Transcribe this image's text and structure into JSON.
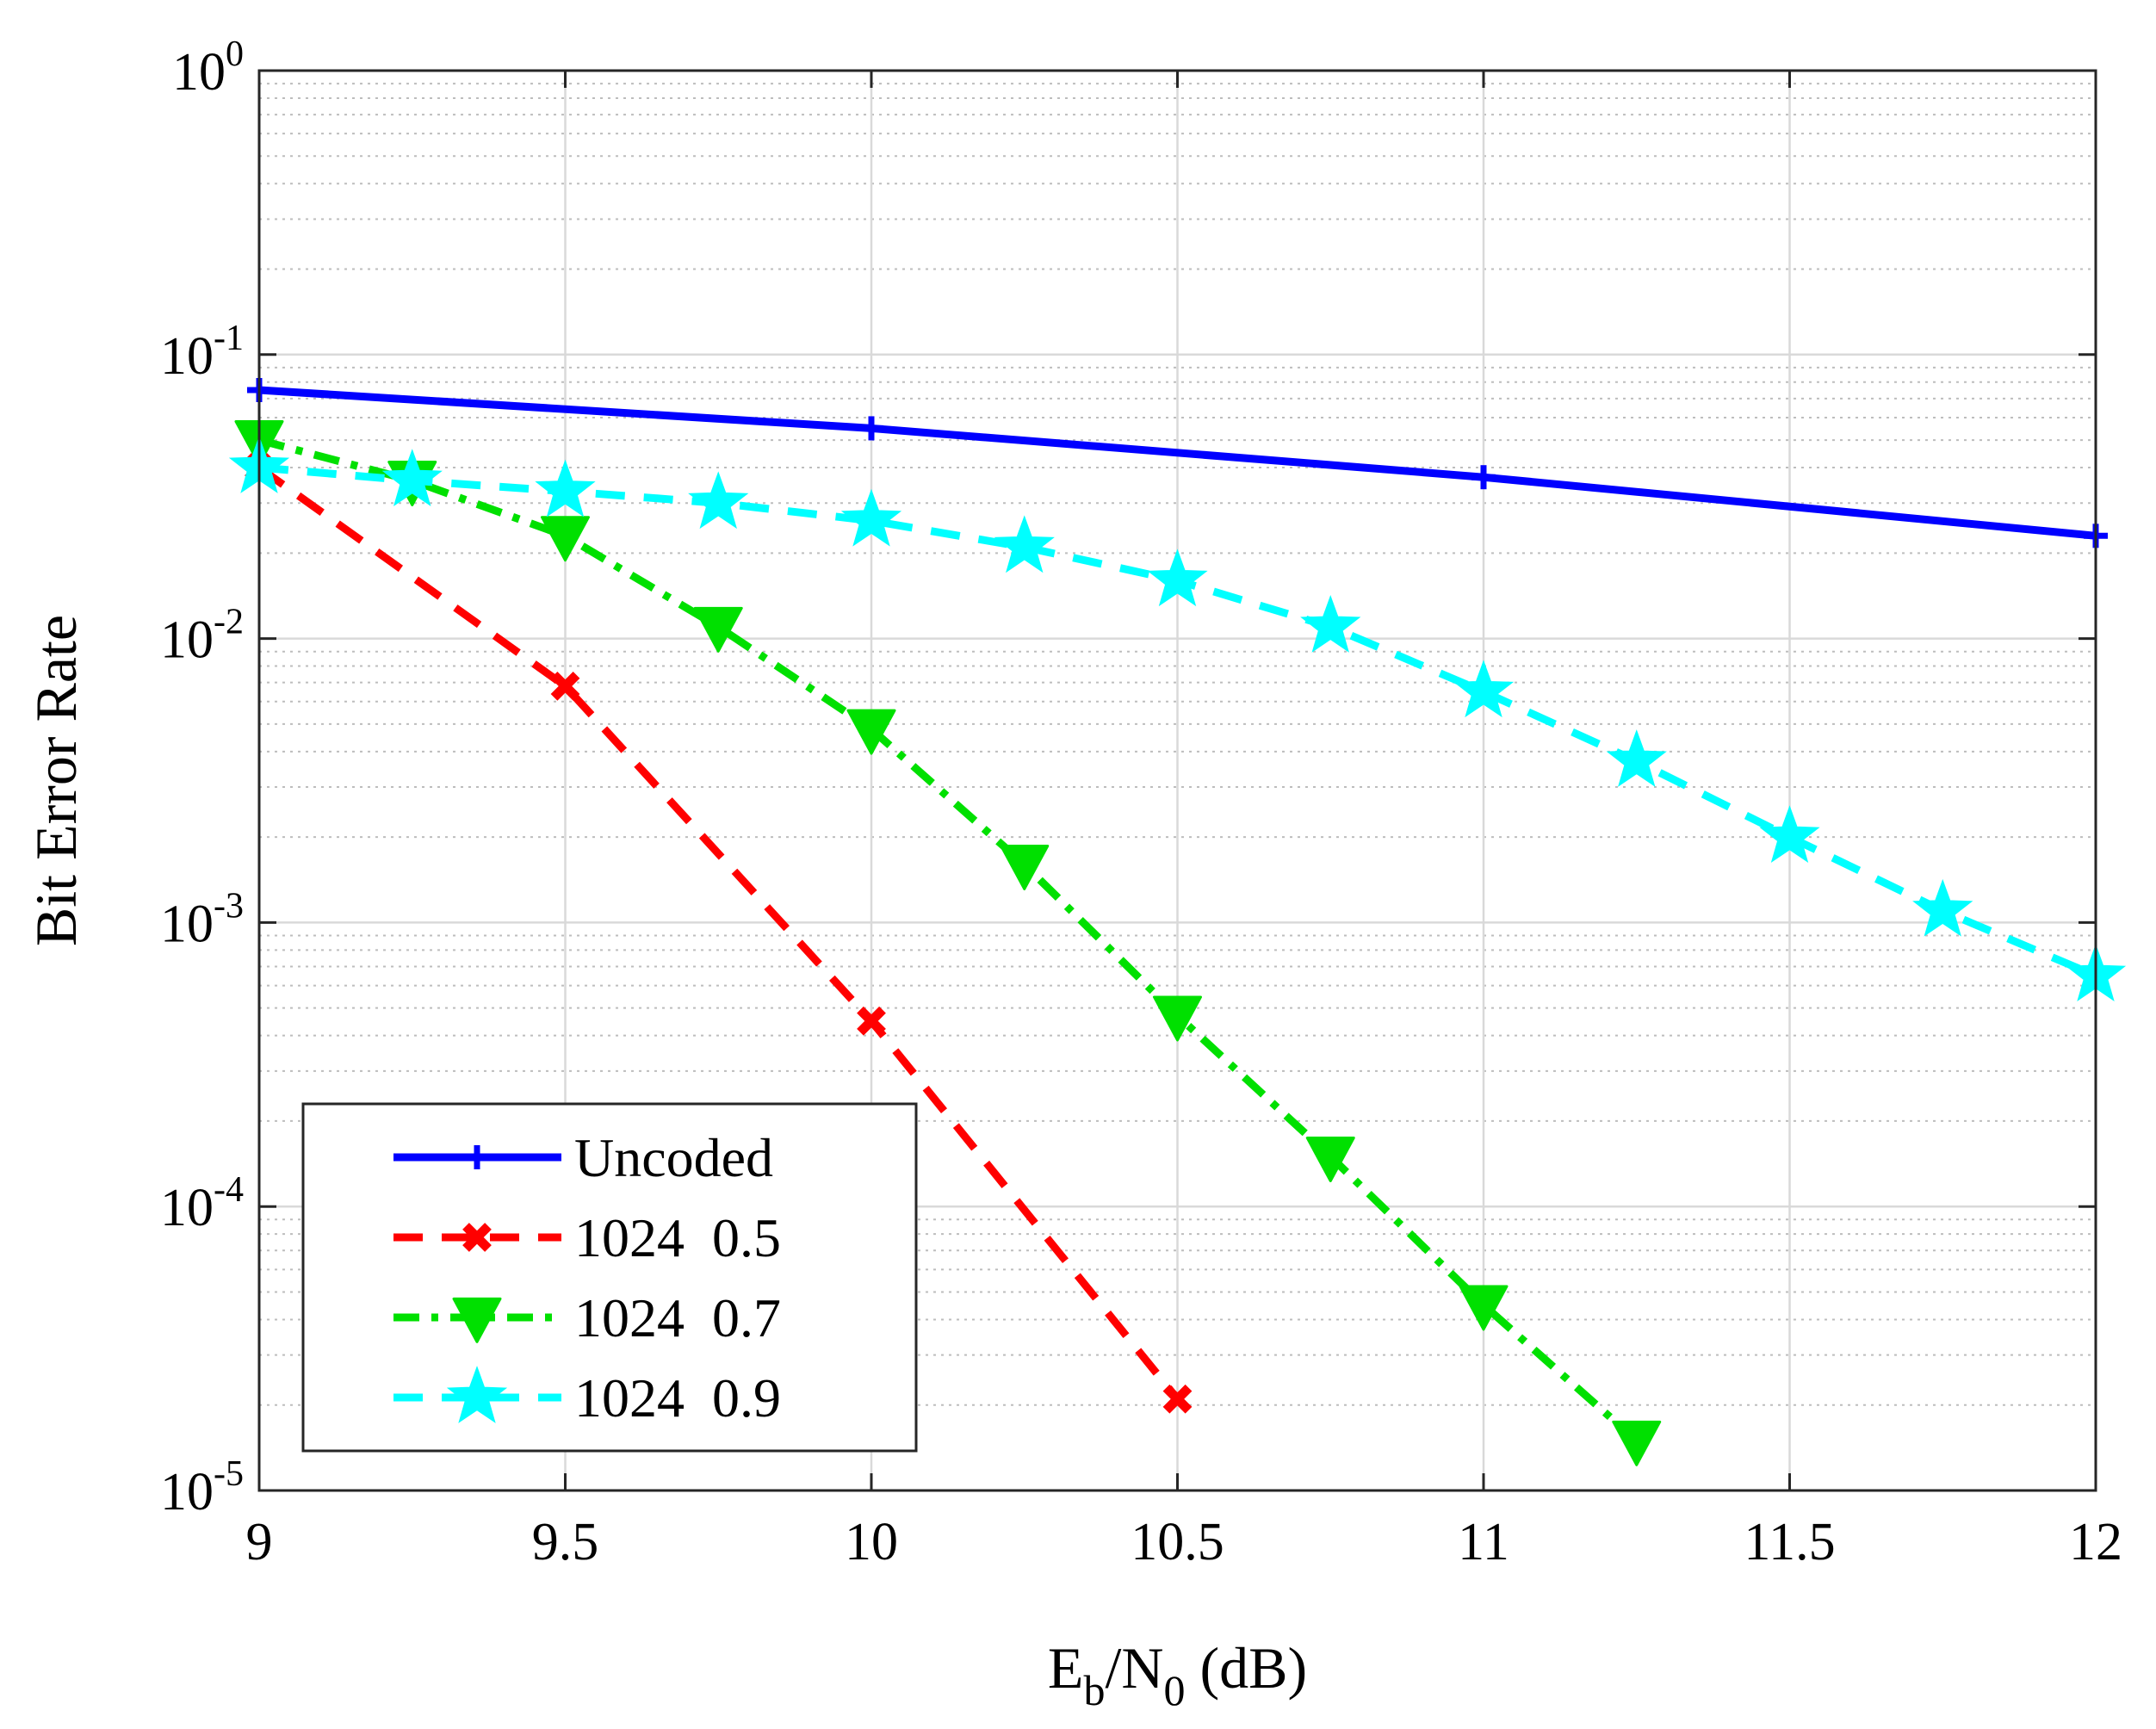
{
  "chart_data": {
    "type": "line",
    "yscale": "log",
    "xlabel": {
      "main": "E",
      "sub1": "b",
      "mid": "/N",
      "sub2": "0",
      "tail": " (dB)"
    },
    "ylabel": "Bit Error Rate",
    "xlim": [
      9,
      12
    ],
    "ylim": [
      1e-05,
      1
    ],
    "xticks": [
      9,
      9.5,
      10,
      10.5,
      11,
      11.5,
      12
    ],
    "xtick_labels": [
      "9",
      "9.5",
      "10",
      "10.5",
      "11",
      "11.5",
      "12"
    ],
    "yticks": [
      {
        "value": 1e-05,
        "base": "10",
        "exp": "-5"
      },
      {
        "value": 0.0001,
        "base": "10",
        "exp": "-4"
      },
      {
        "value": 0.001,
        "base": "10",
        "exp": "-3"
      },
      {
        "value": 0.01,
        "base": "10",
        "exp": "-2"
      },
      {
        "value": 0.1,
        "base": "10",
        "exp": "-1"
      },
      {
        "value": 1,
        "base": "10",
        "exp": "0"
      }
    ],
    "grid": true,
    "legend_position": "bottom-left",
    "series": [
      {
        "name": "Uncoded",
        "color": "#0000ff",
        "dash": "solid",
        "marker": "plus",
        "x": [
          9,
          10,
          11,
          12
        ],
        "y": [
          0.075,
          0.055,
          0.037,
          0.023
        ]
      },
      {
        "name": "1024  0.5",
        "color": "#ff0000",
        "dash": "dashed",
        "marker": "x",
        "x": [
          9,
          9.5,
          10,
          10.5
        ],
        "y": [
          0.04,
          0.0068,
          0.00045,
          2.1e-05
        ]
      },
      {
        "name": "1024  0.7",
        "color": "#00e000",
        "dash": "dashdot",
        "marker": "triangle-down",
        "x": [
          9,
          9.25,
          9.5,
          9.75,
          10,
          10.25,
          10.5,
          10.75,
          11,
          11.25
        ],
        "y": [
          0.05,
          0.036,
          0.023,
          0.011,
          0.0048,
          0.0016,
          0.00047,
          0.00015,
          4.5e-05,
          1.5e-05
        ]
      },
      {
        "name": "1024  0.9",
        "color": "#00ffff",
        "dash": "dashed",
        "marker": "star",
        "x": [
          9,
          9.25,
          9.5,
          9.75,
          10,
          10.25,
          10.5,
          10.75,
          11,
          11.25,
          11.5,
          11.75,
          12
        ],
        "y": [
          0.04,
          0.036,
          0.033,
          0.03,
          0.026,
          0.021,
          0.016,
          0.011,
          0.0065,
          0.0037,
          0.002,
          0.0011,
          0.00065
        ]
      }
    ]
  }
}
